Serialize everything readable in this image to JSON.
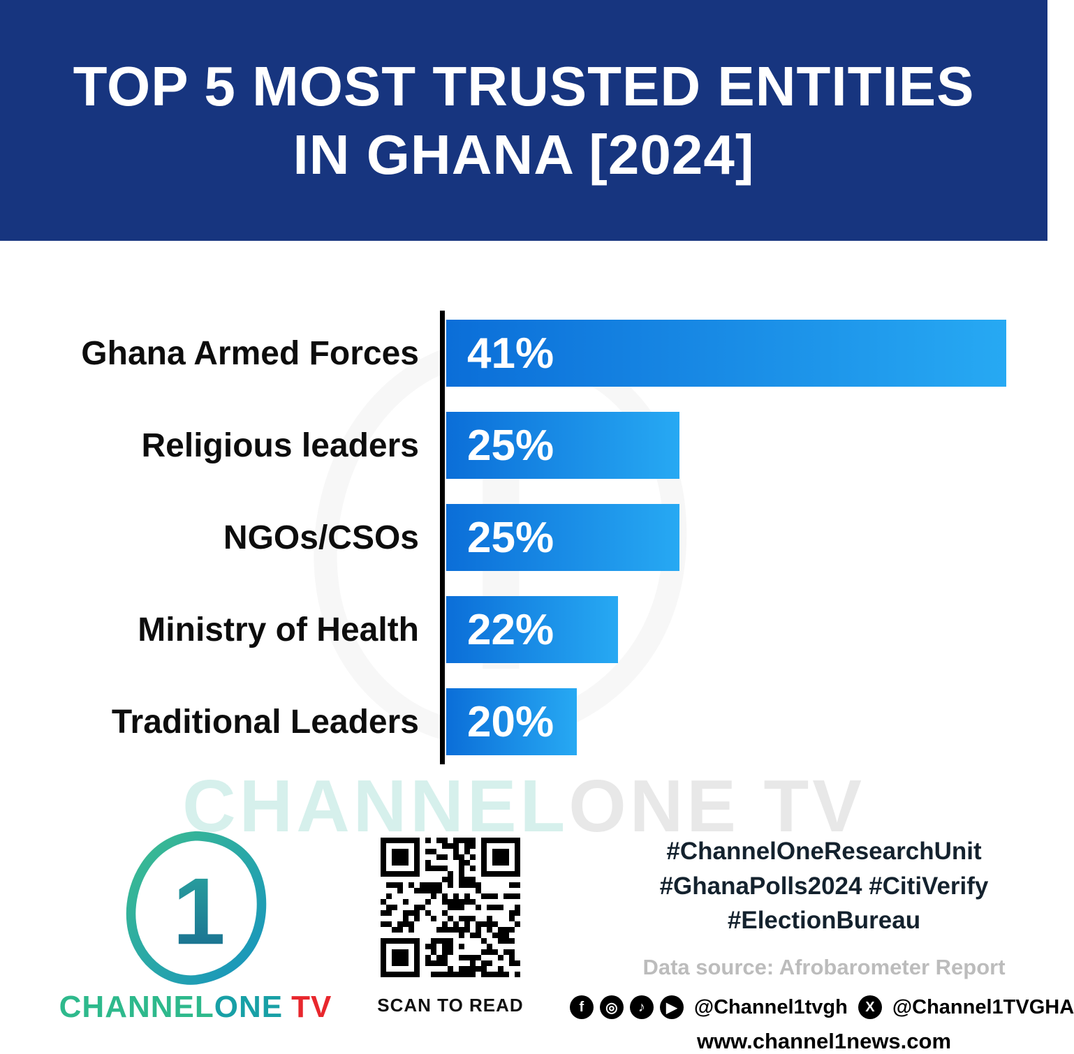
{
  "header": {
    "title_line1": "TOP 5 MOST TRUSTED ENTITIES",
    "title_line2": "IN GHANA [2024]",
    "bg_color": "#17357f"
  },
  "chart_data": {
    "type": "bar",
    "orientation": "horizontal",
    "title": "Top 5 Most Trusted Entities in Ghana [2024]",
    "categories": [
      "Ghana Armed Forces",
      "Religious leaders",
      "NGOs/CSOs",
      "Ministry of Health",
      "Traditional Leaders"
    ],
    "values": [
      41,
      25,
      25,
      22,
      20
    ],
    "value_labels": [
      "41%",
      "25%",
      "25%",
      "22%",
      "20%"
    ],
    "value_suffix": "%",
    "bar_color_start": "#0b6ed8",
    "bar_color_end": "#27a9f3",
    "axis_color": "#000000",
    "legend": "none",
    "grid": false
  },
  "watermark": {
    "part1": "CHANNEL",
    "part2": "ONE TV"
  },
  "footer": {
    "logo": {
      "numeral": "1",
      "channel": "CHANNEL",
      "one": "ONE",
      "tv": "TV"
    },
    "qr_caption": "SCAN TO READ",
    "hashtags": [
      "#ChannelOneResearchUnit",
      "#GhanaPolls2024 #CitiVerify",
      "#ElectionBureau"
    ],
    "data_source": "Data source: Afrobarometer Report",
    "social_handle_1": "@Channel1tvgh",
    "social_handle_2": "@Channel1TVGHA",
    "website": "www.channel1news.com",
    "icons": {
      "facebook": "f",
      "instagram": "◎",
      "tiktok": "♪",
      "youtube": "▶",
      "x": "X"
    }
  },
  "colors": {
    "header_bg": "#17357f",
    "accent_red": "#e8272d",
    "accent_teal": "#2eb98c",
    "source_gray": "#bcbcbc"
  }
}
